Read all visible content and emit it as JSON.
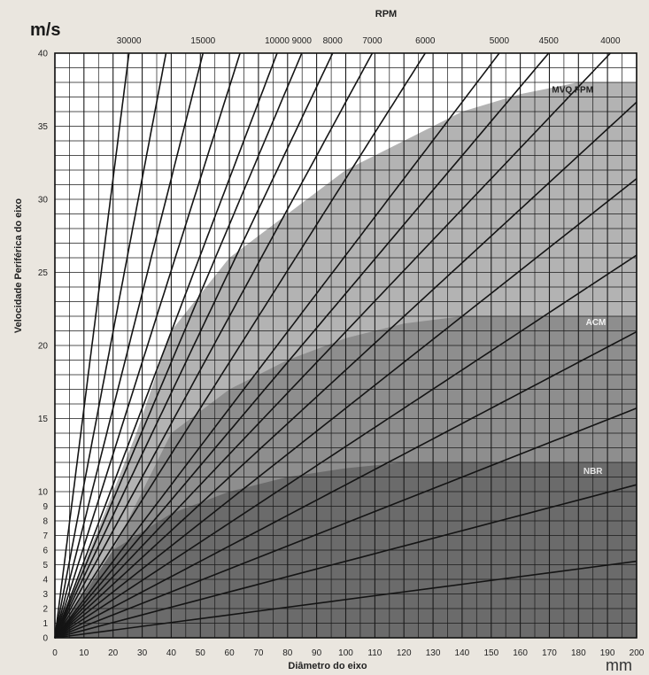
{
  "chart_data": {
    "type": "line",
    "ylabel": "Velocidade Periférica do eixo",
    "xlabel": "Diâmetro do eixo",
    "y_unit": "m/s",
    "x_unit": "mm",
    "top_axis_title": "RPM",
    "xlim": [
      0,
      200
    ],
    "ylim": [
      0,
      40
    ],
    "y_scale": "piecewise: 1 m/s per gridline from 0 to 10, then 1 m/s per gridline spaced wider from 10 to 40",
    "x_ticks": [
      "0",
      "10",
      "20",
      "30",
      "40",
      "50",
      "60",
      "70",
      "80",
      "90",
      "100",
      "110",
      "120",
      "130",
      "140",
      "150",
      "160",
      "170",
      "180",
      "190",
      "200"
    ],
    "y_ticks": [
      "0",
      "1",
      "2",
      "3",
      "4",
      "5",
      "6",
      "7",
      "8",
      "9",
      "10",
      "15",
      "20",
      "25",
      "30",
      "35",
      "40"
    ],
    "rpm_series": [
      {
        "rpm": 30000,
        "label": "30000",
        "show_label": true
      },
      {
        "rpm": 20000,
        "label": "",
        "show_label": false
      },
      {
        "rpm": 15000,
        "label": "15000",
        "show_label": true
      },
      {
        "rpm": 12000,
        "label": "",
        "show_label": false
      },
      {
        "rpm": 10000,
        "label": "10000",
        "show_label": true
      },
      {
        "rpm": 9000,
        "label": "9000",
        "show_label": true
      },
      {
        "rpm": 8000,
        "label": "8000",
        "show_label": true
      },
      {
        "rpm": 7000,
        "label": "7000",
        "show_label": true
      },
      {
        "rpm": 6000,
        "label": "6000",
        "show_label": true
      },
      {
        "rpm": 5000,
        "label": "5000",
        "show_label": true
      },
      {
        "rpm": 4500,
        "label": "4500",
        "show_label": true
      },
      {
        "rpm": 4000,
        "label": "4000",
        "show_label": true
      },
      {
        "rpm": 3500,
        "label": "",
        "show_label": false
      },
      {
        "rpm": 3000,
        "label": "",
        "show_label": false
      },
      {
        "rpm": 2500,
        "label": "",
        "show_label": false
      },
      {
        "rpm": 2000,
        "label": "",
        "show_label": false
      },
      {
        "rpm": 1500,
        "label": "",
        "show_label": false
      },
      {
        "rpm": 1000,
        "label": "",
        "show_label": false
      },
      {
        "rpm": 500,
        "label": "",
        "show_label": false
      }
    ],
    "regions": [
      {
        "name": "MVQ FPM",
        "color": "#b3b3b3",
        "label_color": "#222222",
        "boundary": [
          [
            28,
            14
          ],
          [
            40,
            21
          ],
          [
            60,
            26
          ],
          [
            80,
            29
          ],
          [
            100,
            32
          ],
          [
            120,
            34
          ],
          [
            140,
            36
          ],
          [
            160,
            37.2
          ],
          [
            180,
            38
          ],
          [
            200,
            38
          ]
        ]
      },
      {
        "name": "ACM",
        "color": "#8e8e8e",
        "label_color": "#f2f2f2",
        "boundary": [
          [
            20,
            6
          ],
          [
            40,
            14
          ],
          [
            60,
            17
          ],
          [
            80,
            19
          ],
          [
            100,
            20.5
          ],
          [
            120,
            21.5
          ],
          [
            140,
            22
          ],
          [
            200,
            22
          ]
        ]
      },
      {
        "name": "NBR",
        "color": "#6b6b6b",
        "label_color": "#e6e6e6",
        "boundary": [
          [
            10,
            3
          ],
          [
            20,
            6
          ],
          [
            40,
            8.5
          ],
          [
            60,
            10
          ],
          [
            80,
            11
          ],
          [
            100,
            11.6
          ],
          [
            120,
            12
          ],
          [
            200,
            12
          ]
        ]
      }
    ]
  }
}
